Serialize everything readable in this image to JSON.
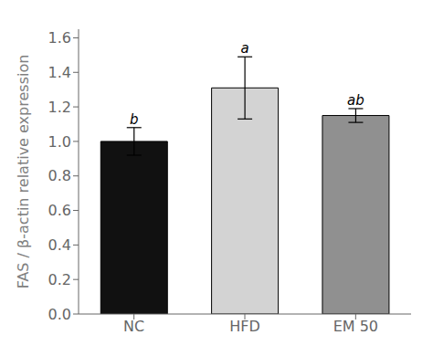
{
  "chart_data": {
    "type": "bar",
    "categories": [
      "NC",
      "HFD",
      "EM 50"
    ],
    "values": [
      1.0,
      1.31,
      1.15
    ],
    "errors": [
      0.08,
      0.18,
      0.04
    ],
    "colors": [
      "#111111",
      "#d3d3d3",
      "#909090"
    ],
    "annotations": [
      "b",
      "a",
      "ab"
    ],
    "ylabel": "FAS / β-actin relative expression",
    "ylim": [
      0.0,
      1.65
    ],
    "yticks": [
      {
        "value": 0.0,
        "label": "0.0"
      },
      0.2,
      0.4,
      0.6,
      0.8,
      {
        "value": 1.0,
        "label": "1.0"
      },
      1.2,
      1.4,
      1.6
    ],
    "grid": false
  }
}
